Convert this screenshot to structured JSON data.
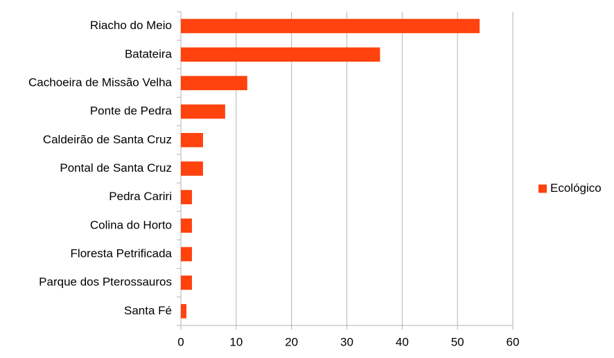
{
  "chart_data": {
    "type": "bar",
    "orientation": "horizontal",
    "categories": [
      "Riacho do Meio",
      "Batateira",
      "Cachoeira de Missão Velha",
      "Ponte de Pedra",
      "Caldeirão de Santa Cruz",
      "Pontal de Santa Cruz",
      "Pedra Cariri",
      "Colina do Horto",
      "Floresta Petrificada",
      "Parque dos Pterossauros",
      "Santa Fé"
    ],
    "series": [
      {
        "name": "Ecológico",
        "color": "#ff420e",
        "values": [
          54,
          36,
          12,
          8,
          4,
          4,
          2,
          2,
          2,
          2,
          1
        ]
      }
    ],
    "xlim": [
      0,
      60
    ],
    "xticks": [
      0,
      10,
      20,
      30,
      40,
      50,
      60
    ],
    "grid": true,
    "legend": "right"
  }
}
